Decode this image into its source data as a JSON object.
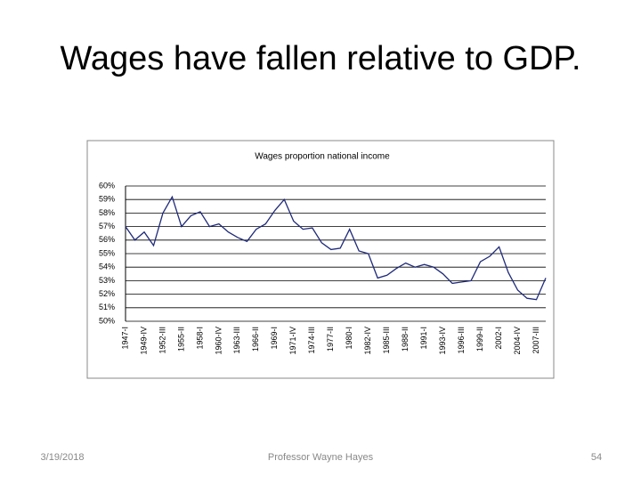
{
  "slide": {
    "title": "Wages have fallen relative to GDP.",
    "date": "3/19/2018",
    "author": "Professor Wayne Hayes",
    "page": "54"
  },
  "chart_data": {
    "type": "line",
    "title": "Wages proportion national income",
    "categories": [
      "1947-I",
      null,
      "1949-IV",
      null,
      "1952-III",
      null,
      "1955-II",
      null,
      "1958-I",
      null,
      "1960-IV",
      null,
      "1963-III",
      null,
      "1966-II",
      null,
      "1969-I",
      null,
      "1971-IV",
      null,
      "1974-III",
      null,
      "1977-II",
      null,
      "1980-I",
      null,
      "1982-IV",
      null,
      "1985-III",
      null,
      "1988-II",
      null,
      "1991-I",
      null,
      "1993-IV",
      null,
      "1996-III",
      null,
      "1999-II",
      null,
      "2002-I",
      null,
      "2004-IV",
      null,
      "2007-III",
      null
    ],
    "series": [
      {
        "name": "Wages proportion national income",
        "color": "#1f2a7a",
        "values": [
          57.0,
          56.0,
          56.6,
          55.6,
          58.0,
          59.2,
          57.0,
          57.8,
          58.1,
          57.0,
          57.2,
          56.6,
          56.2,
          55.9,
          56.8,
          57.2,
          58.2,
          59.0,
          57.4,
          56.8,
          56.9,
          55.8,
          55.3,
          55.4,
          56.8,
          55.2,
          55.0,
          53.2,
          53.4,
          53.9,
          54.3,
          54.0,
          54.2,
          54.0,
          53.5,
          52.8,
          52.9,
          53.0,
          54.4,
          54.8,
          55.5,
          53.6,
          52.3,
          51.7,
          51.6,
          53.2
        ]
      }
    ],
    "ylim": [
      50,
      60
    ],
    "yticks": [
      {
        "value": 50,
        "label": "50%"
      },
      {
        "value": 51,
        "label": "51%"
      },
      {
        "value": 52,
        "label": "52%"
      },
      {
        "value": 53,
        "label": "53%"
      },
      {
        "value": 54,
        "label": "54%"
      },
      {
        "value": 55,
        "label": "55%"
      },
      {
        "value": 56,
        "label": "56%"
      },
      {
        "value": 57,
        "label": "57%"
      },
      {
        "value": 58,
        "label": "58%"
      },
      {
        "value": 59,
        "label": "59%"
      },
      {
        "value": 60,
        "label": "60%"
      }
    ],
    "grid": true
  }
}
